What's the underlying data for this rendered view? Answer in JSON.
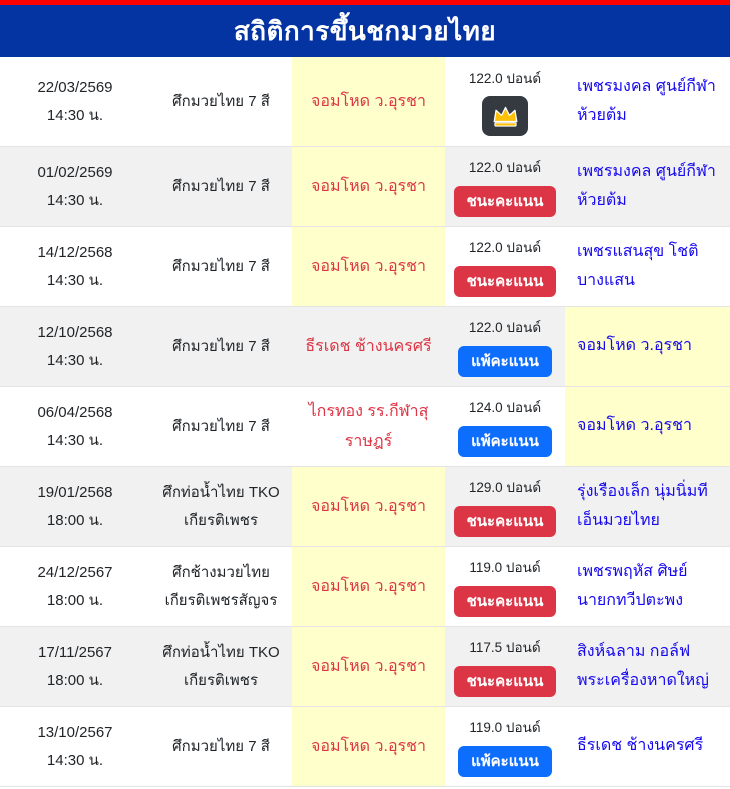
{
  "header": {
    "title": "สถิติการขึ้นชกมวยไทย"
  },
  "colors": {
    "top_bar": "#fe0000",
    "header_bg": "#0433a2",
    "stripe": "#f1f1f1",
    "highlight": "#ffffcc",
    "fighter_red": "#dc3545",
    "opponent_blue": "#1508f0",
    "win_badge": "#dc3545",
    "lose_badge": "#0d6efd",
    "crown_badge_bg": "#343a40",
    "crown_gold": "#ffc107"
  },
  "result_labels": {
    "win": "ชนะคะแนน",
    "lose": "แพ้คะแนน",
    "crown": "crown-icon"
  },
  "fights": [
    {
      "date": "22/03/2569",
      "time": "14:30 น.",
      "event": "ศึกมวยไทย 7 สี",
      "fighter": "จอมโหด ว.อุรชา",
      "fighter_highlight": true,
      "weight": "122.0 ปอนด์",
      "result": "crown",
      "result_label": "",
      "opponent": "เพชรมงคล ศูนย์กีฬา ห้วยต้ม",
      "opponent_highlight": false
    },
    {
      "date": "01/02/2569",
      "time": "14:30 น.",
      "event": "ศึกมวยไทย 7 สี",
      "fighter": "จอมโหด ว.อุรชา",
      "fighter_highlight": true,
      "weight": "122.0 ปอนด์",
      "result": "win",
      "result_label": "ชนะคะแนน",
      "opponent": "เพชรมงคล ศูนย์กีฬา ห้วยต้ม",
      "opponent_highlight": false
    },
    {
      "date": "14/12/2568",
      "time": "14:30 น.",
      "event": "ศึกมวยไทย 7 สี",
      "fighter": "จอมโหด ว.อุรชา",
      "fighter_highlight": true,
      "weight": "122.0 ปอนด์",
      "result": "win",
      "result_label": "ชนะคะแนน",
      "opponent": "เพชรแสนสุข โชติ บางแสน",
      "opponent_highlight": false
    },
    {
      "date": "12/10/2568",
      "time": "14:30 น.",
      "event": "ศึกมวยไทย 7 สี",
      "fighter": "ธีรเดช ช้างนครศรี",
      "fighter_highlight": false,
      "weight": "122.0 ปอนด์",
      "result": "lose",
      "result_label": "แพ้คะแนน",
      "opponent": "จอมโหด ว.อุรชา",
      "opponent_highlight": true
    },
    {
      "date": "06/04/2568",
      "time": "14:30 น.",
      "event": "ศึกมวยไทย 7 สี",
      "fighter": "ไกรทอง รร.กีฬาสุ ราษฎร์",
      "fighter_highlight": false,
      "weight": "124.0 ปอนด์",
      "result": "lose",
      "result_label": "แพ้คะแนน",
      "opponent": "จอมโหด ว.อุรชา",
      "opponent_highlight": true
    },
    {
      "date": "19/01/2568",
      "time": "18:00 น.",
      "event": "ศึกท่อน้ำไทย TKO เกียรติเพชร",
      "fighter": "จอมโหด ว.อุรชา",
      "fighter_highlight": true,
      "weight": "129.0 ปอนด์",
      "result": "win",
      "result_label": "ชนะคะแนน",
      "opponent": "รุ่งเรืองเล็ก นุ่มนิ่มที เอ็นมวยไทย",
      "opponent_highlight": false
    },
    {
      "date": "24/12/2567",
      "time": "18:00 น.",
      "event": "ศึกช้างมวยไทย เกียรติเพชรสัญจร",
      "fighter": "จอมโหด ว.อุรชา",
      "fighter_highlight": true,
      "weight": "119.0 ปอนด์",
      "result": "win",
      "result_label": "ชนะคะแนน",
      "opponent": "เพชรพฤหัส ศิษย์ นายกทวีปตะพง",
      "opponent_highlight": false
    },
    {
      "date": "17/11/2567",
      "time": "18:00 น.",
      "event": "ศึกท่อน้ำไทย TKO เกียรติเพชร",
      "fighter": "จอมโหด ว.อุรชา",
      "fighter_highlight": true,
      "weight": "117.5 ปอนด์",
      "result": "win",
      "result_label": "ชนะคะแนน",
      "opponent": "สิงห์ฉลาม กอล์ฟ พระเครื่องหาดใหญ่",
      "opponent_highlight": false
    },
    {
      "date": "13/10/2567",
      "time": "14:30 น.",
      "event": "ศึกมวยไทย 7 สี",
      "fighter": "จอมโหด ว.อุรชา",
      "fighter_highlight": true,
      "weight": "119.0 ปอนด์",
      "result": "lose",
      "result_label": "แพ้คะแนน",
      "opponent": "ธีรเดช ช้างนครศรี",
      "opponent_highlight": false
    }
  ]
}
